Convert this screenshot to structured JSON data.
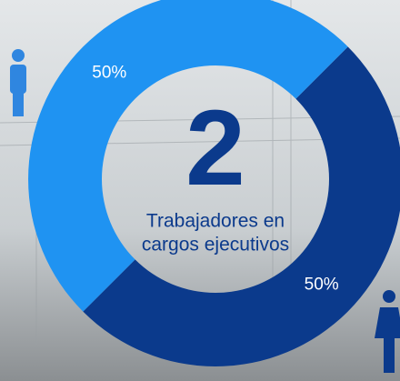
{
  "chart_data": {
    "type": "donut",
    "values": [
      50,
      50
    ],
    "value_labels": [
      "50%",
      "50%"
    ],
    "colors": [
      "#0b3a8c",
      "#1f93f2"
    ],
    "center_value": "2",
    "center_label": [
      "Trabajadores en",
      "cargos ejecutivos"
    ]
  }
}
